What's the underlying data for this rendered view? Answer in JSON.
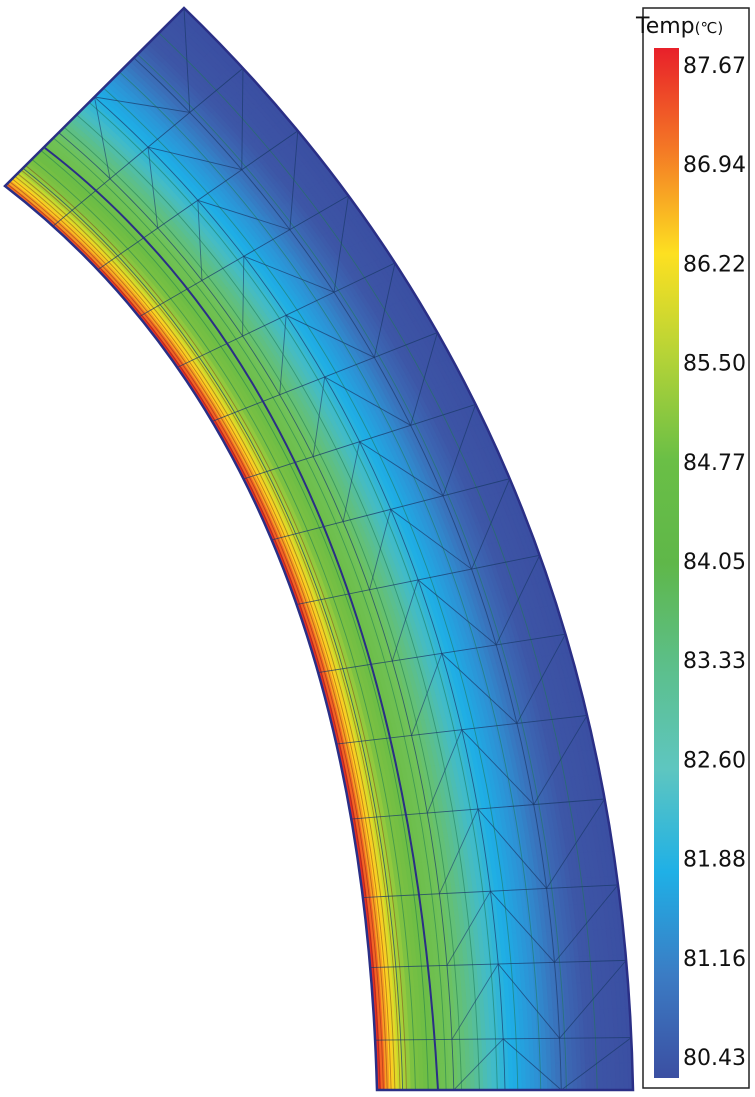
{
  "legend": {
    "title": "Temp",
    "unit": "(℃)",
    "ticks": [
      "87.67",
      "86.94",
      "86.22",
      "85.50",
      "84.77",
      "84.05",
      "83.33",
      "82.60",
      "81.88",
      "81.16",
      "80.43"
    ],
    "colors": [
      "#e8202a",
      "#f47a25",
      "#fde021",
      "#b4d337",
      "#6abf46",
      "#5fb749",
      "#5cbf8a",
      "#5ec6c0",
      "#1fb0e6",
      "#3b7cc4",
      "#3b4fa2"
    ]
  },
  "contour": {
    "min": 80.43,
    "max": 87.67
  }
}
